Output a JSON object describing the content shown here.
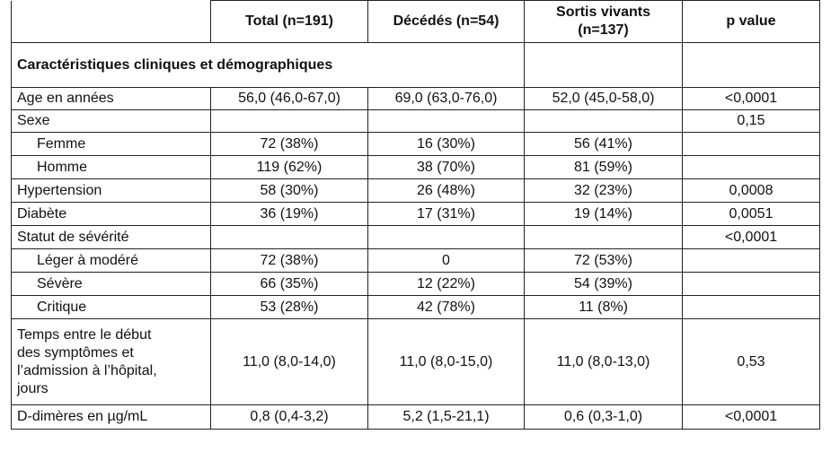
{
  "header": {
    "col1": "",
    "total": "Total (n=191)",
    "deceased": "Décédés (n=54)",
    "survivors_line1": "Sortis vivants",
    "survivors_line2": "(n=137)",
    "pvalue": "p value"
  },
  "section_title": "Caractéristiques cliniques et démographiques",
  "rows": [
    {
      "label": "Age en années",
      "total": "56,0 (46,0-67,0)",
      "deceased": "69,0 (63,0-76,0)",
      "survivors": "52,0 (45,0-58,0)",
      "p": "<0,0001"
    },
    {
      "label": "Sexe",
      "total": "",
      "deceased": "",
      "survivors": "",
      "p": "0,15"
    },
    {
      "label": "Femme",
      "total": "72 (38%)",
      "deceased": "16 (30%)",
      "survivors": "56 (41%)",
      "p": ""
    },
    {
      "label": "Homme",
      "total": "119 (62%)",
      "deceased": "38 (70%)",
      "survivors": "81 (59%)",
      "p": ""
    },
    {
      "label": "Hypertension",
      "total": "58 (30%)",
      "deceased": "26 (48%)",
      "survivors": "32 (23%)",
      "p": "0,0008"
    },
    {
      "label": "Diabète",
      "total": "36 (19%)",
      "deceased": "17 (31%)",
      "survivors": "19 (14%)",
      "p": "0,0051"
    },
    {
      "label": "Statut de sévérité",
      "total": "",
      "deceased": "",
      "survivors": "",
      "p": "<0,0001"
    },
    {
      "label": "Léger à modéré",
      "total": "72 (38%)",
      "deceased": "0",
      "survivors": "72 (53%)",
      "p": ""
    },
    {
      "label": "Sévère",
      "total": "66 (35%)",
      "deceased": "12 (22%)",
      "survivors": "54 (39%)",
      "p": ""
    },
    {
      "label": "Critique",
      "total": "53 (28%)",
      "deceased": "42 (78%)",
      "survivors": "11 (8%)",
      "p": ""
    },
    {
      "label_lines": [
        "Temps entre le début",
        "des symptômes et",
        "l’admission à l’hôpital,",
        "jours"
      ],
      "total": "11,0 (8,0-14,0)",
      "deceased": "11,0 (8,0-15,0)",
      "survivors": "11,0 (8,0-13,0)",
      "p": "0,53"
    },
    {
      "label": "D-dimères en µg/mL",
      "total": "0,8 (0,4-3,2)",
      "deceased": "5,2 (1,5-21,1)",
      "survivors": "0,6 (0,3-1,0)",
      "p": "<0,0001"
    }
  ]
}
